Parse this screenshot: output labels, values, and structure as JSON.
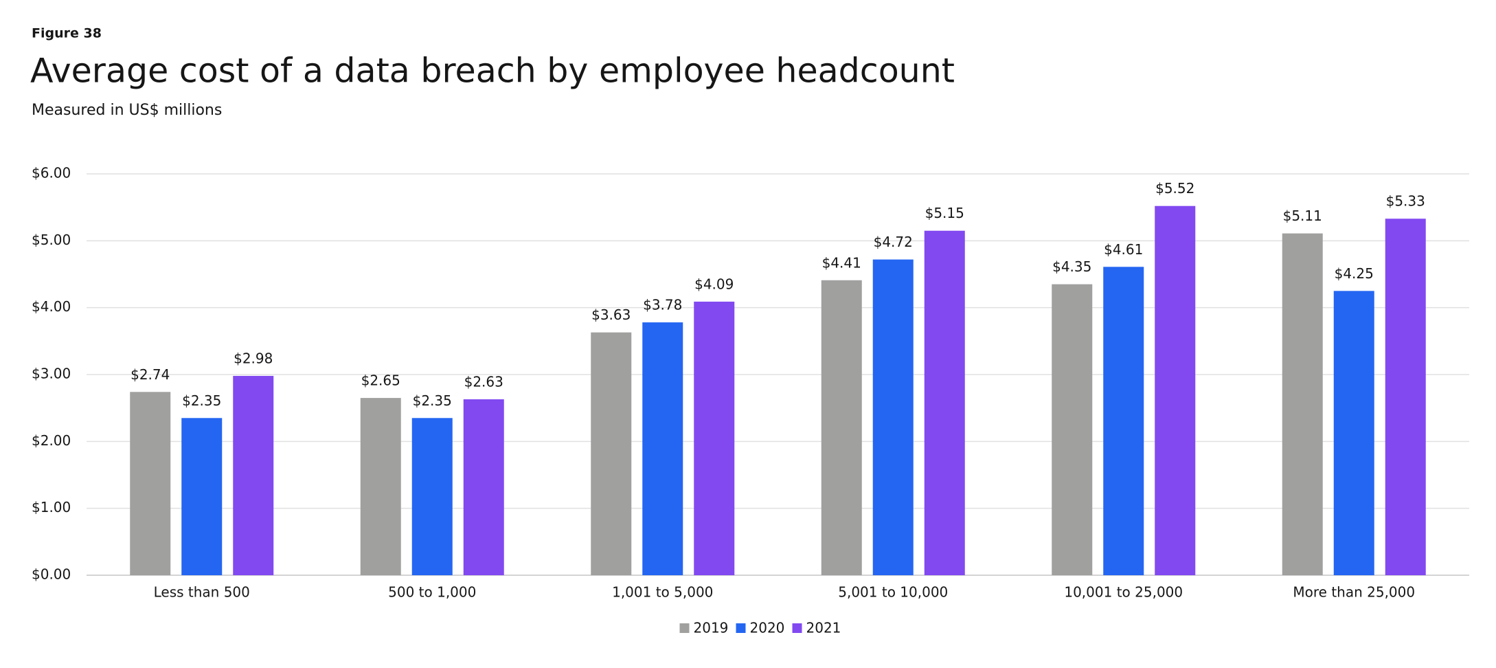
{
  "chart_data": {
    "type": "bar",
    "figure_label": "Figure 38",
    "title": "Average cost of a data breach by employee headcount",
    "subtitle": "Measured in US$ millions",
    "categories": [
      "Less than 500",
      "500 to 1,000",
      "1,001 to 5,000",
      "5,001 to 10,000",
      "10,001 to 25,000",
      "More than 25,000"
    ],
    "series": [
      {
        "name": "2019",
        "color": "#a0a09f",
        "values": [
          2.74,
          2.65,
          3.63,
          4.41,
          4.35,
          5.11
        ],
        "value_labels": [
          "$2.74",
          "$2.65",
          "$3.63",
          "$4.41",
          "$4.35",
          "$5.11"
        ]
      },
      {
        "name": "2020",
        "color": "#2466f2",
        "values": [
          2.35,
          2.35,
          3.78,
          4.72,
          4.61,
          4.25
        ],
        "value_labels": [
          "$2.35",
          "$2.35",
          "$3.78",
          "$4.72",
          "$4.61",
          "$4.25"
        ]
      },
      {
        "name": "2021",
        "color": "#8249f1",
        "values": [
          2.98,
          2.63,
          4.09,
          5.15,
          5.52,
          5.33
        ],
        "value_labels": [
          "$2.98",
          "$2.63",
          "$4.09",
          "$5.15",
          "$5.52",
          "$5.33"
        ]
      }
    ],
    "ylim": [
      0,
      6
    ],
    "yticks": [
      {
        "value": 0,
        "label": "$0.00"
      },
      {
        "value": 1,
        "label": "$1.00"
      },
      {
        "value": 2,
        "label": "$2.00"
      },
      {
        "value": 3,
        "label": "$3.00"
      },
      {
        "value": 4,
        "label": "$4.00"
      },
      {
        "value": 5,
        "label": "$5.00"
      },
      {
        "value": 6,
        "label": "$6.00"
      }
    ],
    "grid": true,
    "legend": "bottom"
  }
}
